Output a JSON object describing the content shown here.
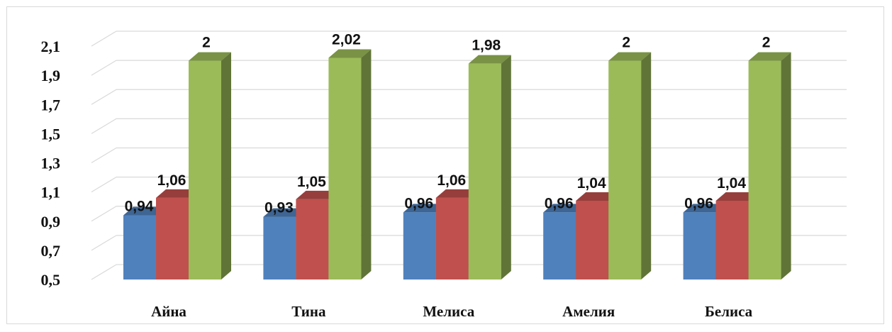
{
  "chart_data": {
    "type": "bar",
    "categories": [
      "Айна",
      "Тина",
      "Мелиса",
      "Амелия",
      "Белиса"
    ],
    "series": [
      {
        "values": [
          0.94,
          0.93,
          0.96,
          0.96,
          0.96
        ],
        "labels": [
          "0,94",
          "0,93",
          "0,96",
          "0,96",
          "0,96"
        ],
        "color": "#4f81bd"
      },
      {
        "values": [
          1.06,
          1.05,
          1.06,
          1.04,
          1.04
        ],
        "labels": [
          "1,06",
          "1,05",
          "1,06",
          "1,04",
          "1,04"
        ],
        "color": "#c0504d"
      },
      {
        "values": [
          2,
          2.02,
          1.98,
          2,
          2
        ],
        "labels": [
          "2",
          "2,02",
          "1,98",
          "2",
          "2"
        ],
        "color": "#9bbb59"
      }
    ],
    "ylim": [
      0.5,
      2.1
    ],
    "yticks": [
      0.5,
      0.7,
      0.9,
      1.1,
      1.3,
      1.5,
      1.7,
      1.9,
      2.1
    ],
    "ytick_labels": [
      "0,5",
      "0,7",
      "0,9",
      "1,1",
      "1,3",
      "1,5",
      "1,7",
      "1,9",
      "2,1"
    ],
    "grid": true,
    "style": "3d-clustered-column",
    "title": "",
    "xlabel": "",
    "ylabel": ""
  }
}
